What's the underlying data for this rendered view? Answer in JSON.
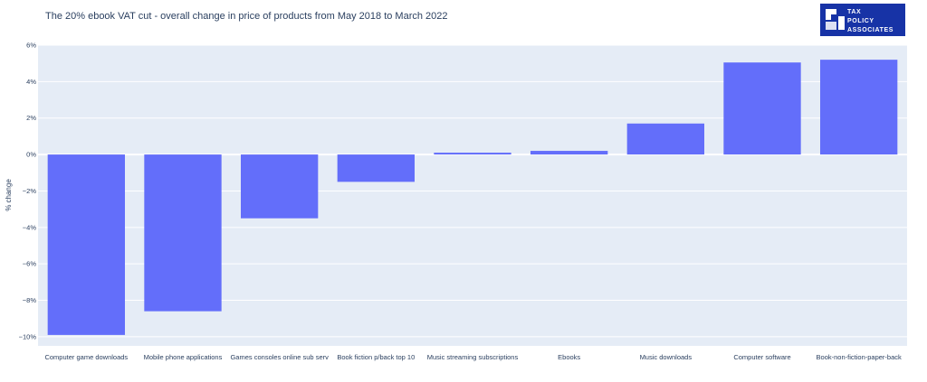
{
  "colors": {
    "bar": "#636efa",
    "plot_background": "#e5ecf6",
    "text": "#2a3f5f",
    "logo_background": "#1733a6"
  },
  "logo": {
    "icon": "tax-policy-logo-mark-icon",
    "lines": [
      "TAX",
      "POLICY",
      "ASSOCIATES"
    ]
  },
  "chart_data": {
    "type": "bar",
    "title": "The 20% ebook VAT cut - overall change in price of products from May 2018 to March 2022",
    "xlabel": "",
    "ylabel": "% change",
    "ylim": [
      -10.5,
      6
    ],
    "yticks": [
      6,
      4,
      2,
      0,
      -2,
      -4,
      -6,
      -8,
      -10
    ],
    "ytick_labels": [
      "6%",
      "4%",
      "2%",
      "0%",
      "−2%",
      "−4%",
      "−6%",
      "−8%",
      "−10%"
    ],
    "grid": true,
    "categories": [
      "Computer game downloads",
      "Mobile phone applications",
      "Games consoles online sub serv",
      "Book fiction p/back top 10",
      "Music streaming subscriptions",
      "Ebooks",
      "Music downloads",
      "Computer software",
      "Book-non-fiction-paper-back"
    ],
    "values": [
      -9.9,
      -8.6,
      -3.5,
      -1.5,
      0.1,
      0.2,
      1.7,
      5.05,
      5.2
    ]
  }
}
